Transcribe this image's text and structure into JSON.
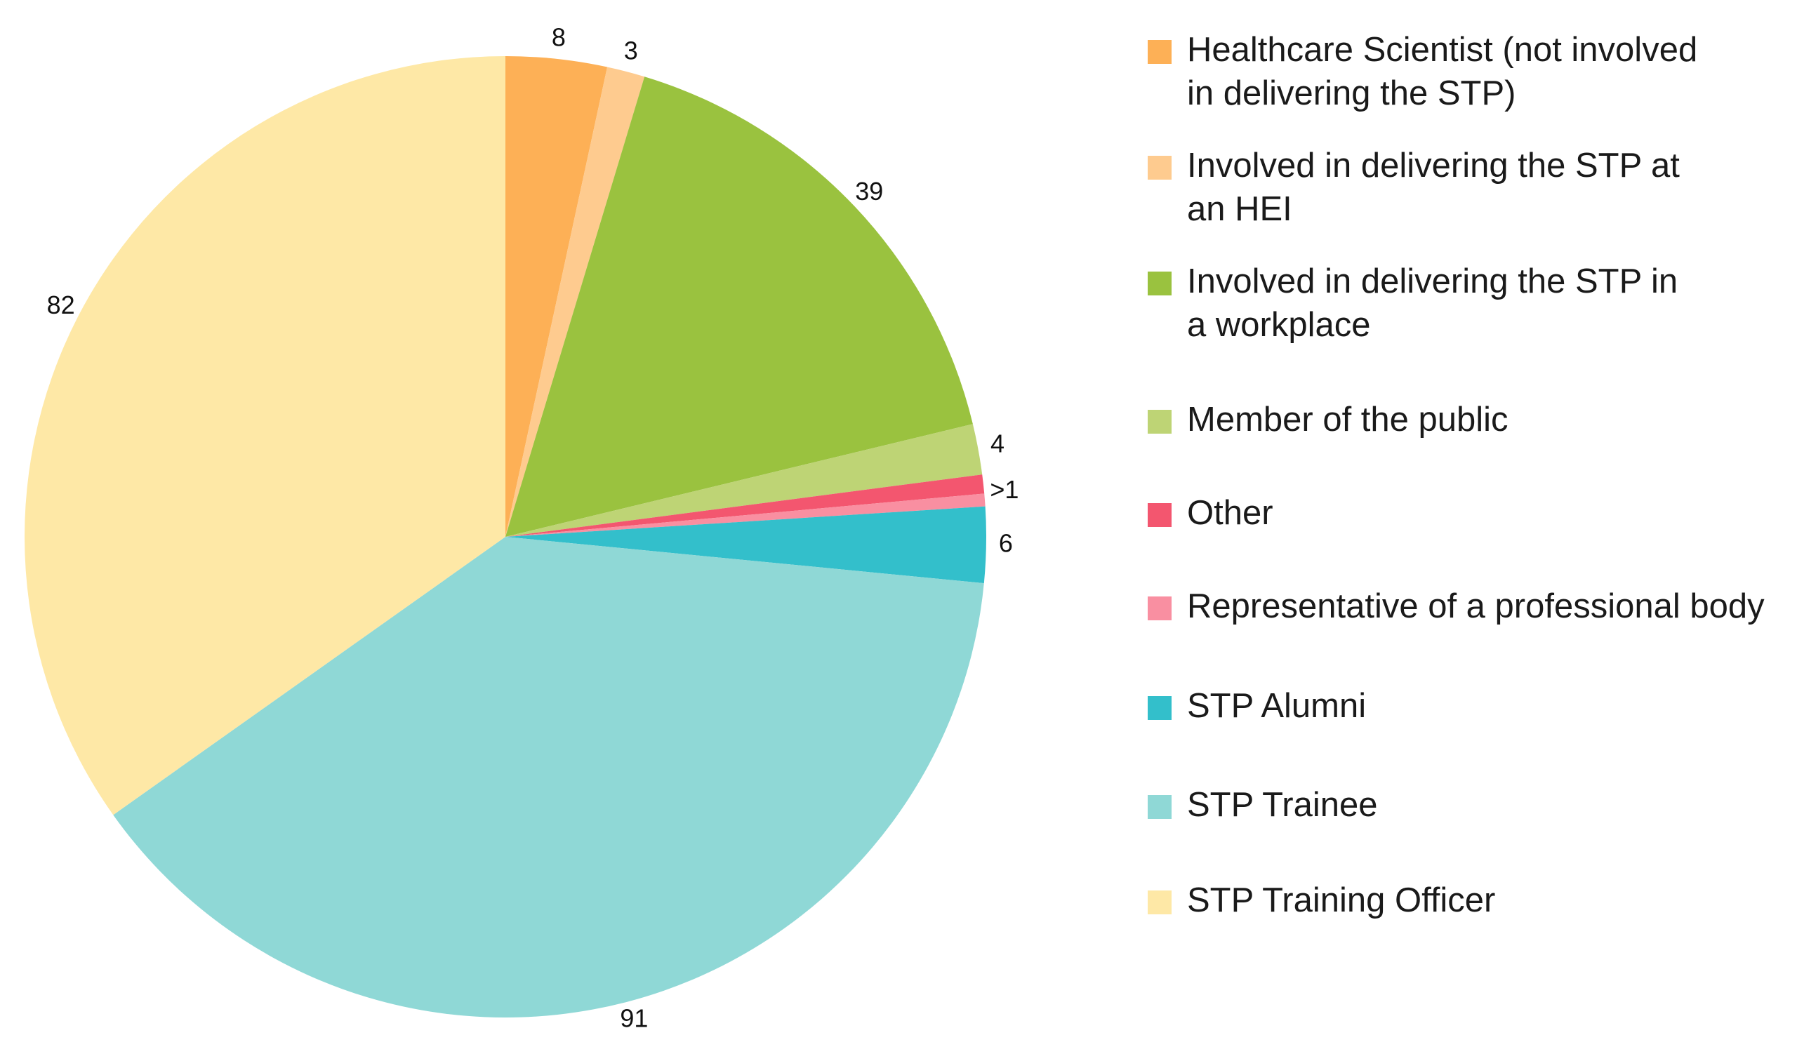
{
  "chart_data": {
    "type": "pie",
    "categories": [
      "Healthcare Scientist (not involved in delivering the STP)",
      "Involved in delivering the STP at an HEI",
      "Involved in delivering the STP in a workplace",
      "Member of the public",
      "Other",
      "Representative of a professional body",
      "STP Alumni",
      "STP Trainee",
      "STP Training Officer"
    ],
    "values": [
      8,
      3,
      39,
      4,
      1.5,
      1,
      6,
      91,
      82
    ],
    "data_labels": [
      "8",
      "3",
      "39",
      "4",
      "",
      ">1",
      "6",
      "91",
      "82"
    ],
    "colors": [
      "#FDB056",
      "#FECB8F",
      "#9AC23F",
      "#BED475",
      "#F3566F",
      "#F98FA1",
      "#33BFCB",
      "#8FD8D6",
      "#FEE8A6"
    ],
    "legend_position": "right",
    "start_angle_deg": 0,
    "direction": "clockwise"
  },
  "legend": {
    "items": [
      {
        "label": "Healthcare Scientist (not involved\nin delivering the STP)",
        "color": "#FDB056"
      },
      {
        "label": "Involved in delivering the STP at\nan HEI",
        "color": "#FECB8F"
      },
      {
        "label": "Involved in delivering the STP in\na workplace",
        "color": "#9AC23F"
      },
      {
        "label": "Member of the public",
        "color": "#BED475"
      },
      {
        "label": "Other",
        "color": "#F3566F"
      },
      {
        "label": "Representative of a professional body",
        "color": "#F98FA1"
      },
      {
        "label": "STP Alumni",
        "color": "#33BFCB"
      },
      {
        "label": "STP Trainee",
        "color": "#8FD8D6"
      },
      {
        "label": "STP Training Officer",
        "color": "#FEE8A6"
      }
    ]
  }
}
